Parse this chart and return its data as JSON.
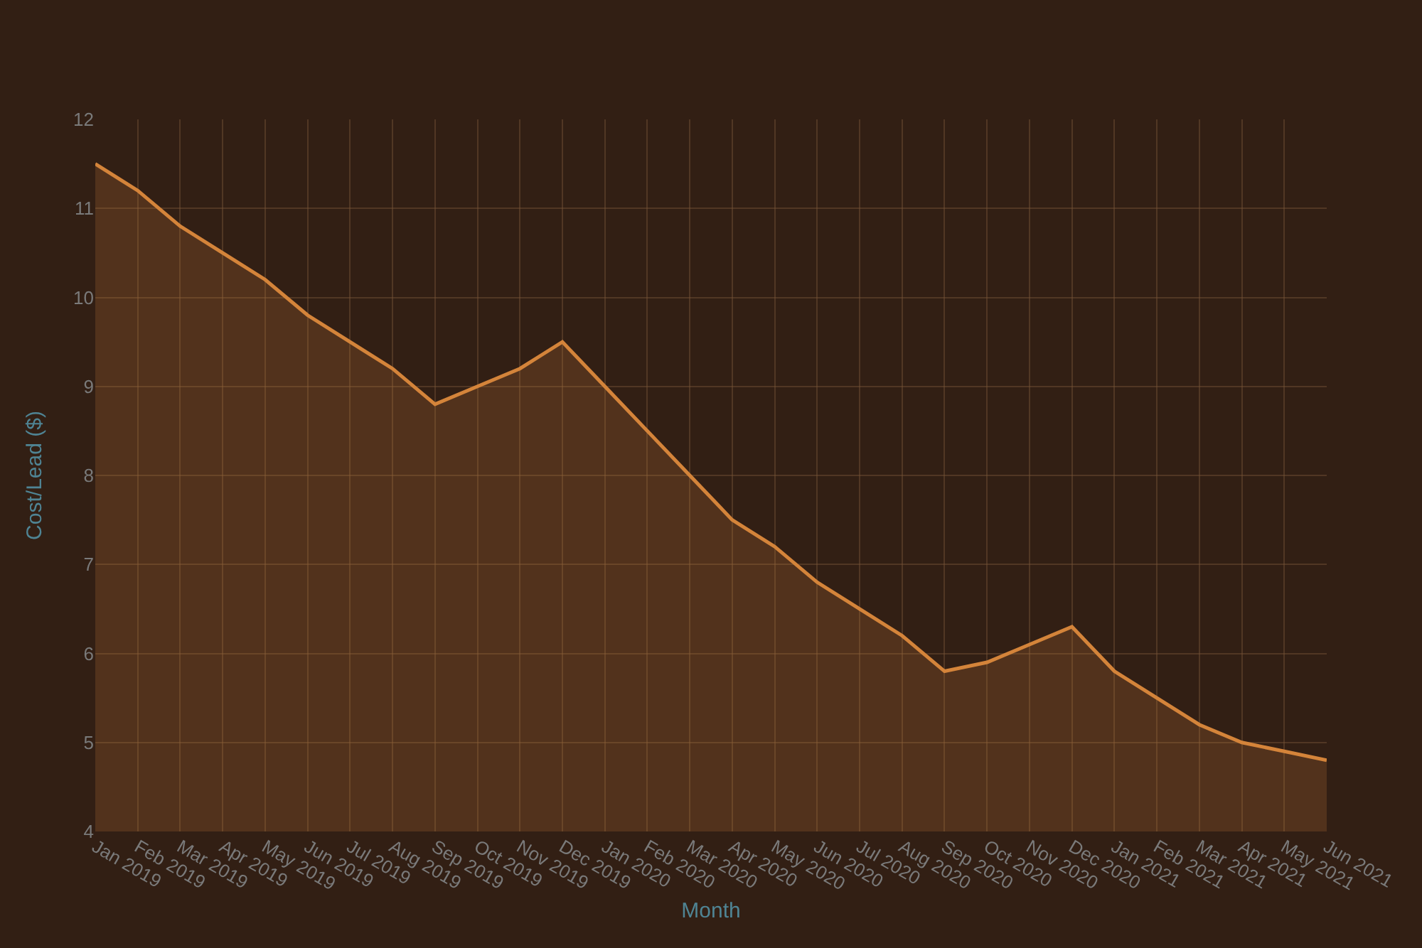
{
  "chart_data": {
    "type": "area",
    "xlabel": "Month",
    "ylabel": "Cost/Lead ($)",
    "categories": [
      "Jan 2019",
      "Feb 2019",
      "Mar 2019",
      "Apr 2019",
      "May 2019",
      "Jun 2019",
      "Jul 2019",
      "Aug 2019",
      "Sep 2019",
      "Oct 2019",
      "Nov 2019",
      "Dec 2019",
      "Jan 2020",
      "Feb 2020",
      "Mar 2020",
      "Apr 2020",
      "May 2020",
      "Jun 2020",
      "Jul 2020",
      "Aug 2020",
      "Sep 2020",
      "Oct 2020",
      "Nov 2020",
      "Dec 2020",
      "Jan 2021",
      "Feb 2021",
      "Mar 2021",
      "Apr 2021",
      "May 2021",
      "Jun 2021"
    ],
    "series": [
      {
        "color": "#d4843a",
        "values": [
          11.5,
          11.2,
          10.8,
          10.5,
          10.2,
          9.8,
          9.5,
          9.2,
          8.8,
          9.0,
          9.2,
          9.5,
          9.0,
          8.5,
          8.0,
          7.5,
          7.2,
          6.8,
          6.5,
          6.2,
          5.8,
          5.9,
          6.1,
          6.3,
          5.8,
          5.5,
          5.2,
          5.0,
          4.9,
          4.8
        ]
      }
    ],
    "ylim": [
      4,
      12
    ],
    "yticks": [
      4,
      5,
      6,
      7,
      8,
      9,
      10,
      11,
      12
    ],
    "grid": true,
    "marker": "none",
    "line_style": "solid"
  }
}
